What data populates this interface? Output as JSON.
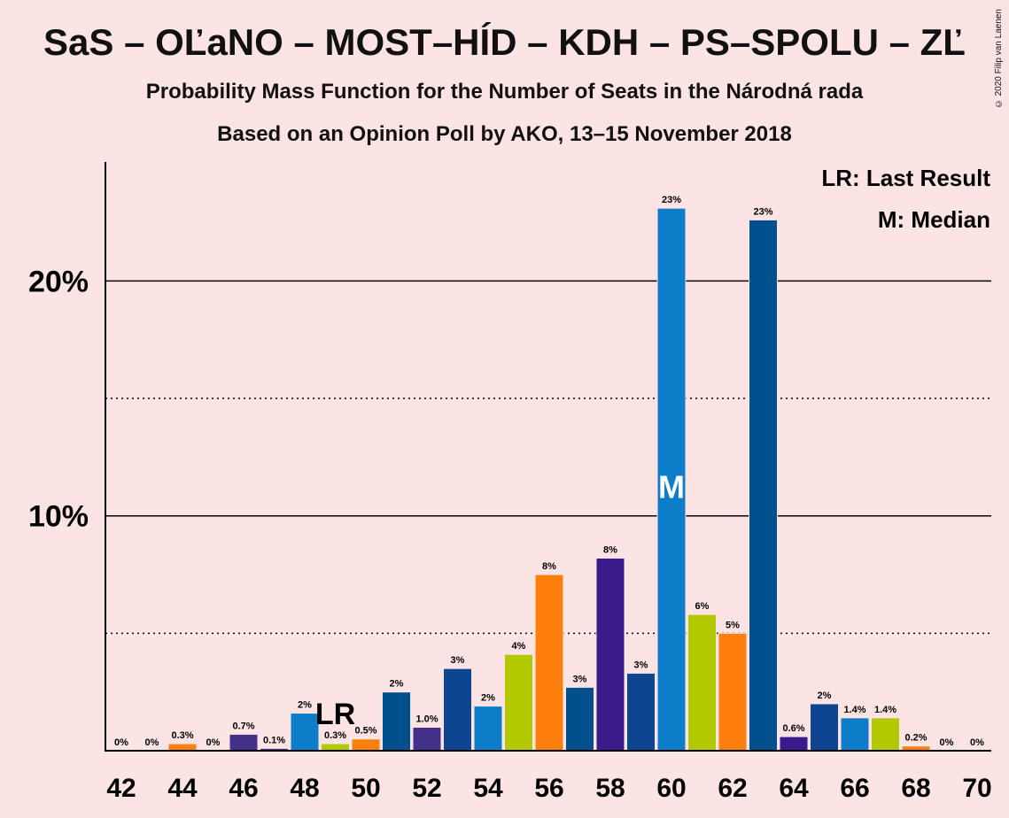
{
  "title": "SaS – OĽaNO – MOST–HÍD – KDH – PS–SPOLU – ZĽ",
  "subtitle": "Probability Mass Function for the Number of Seats in the Národná rada",
  "subtitle2": "Based on an Opinion Poll by AKO, 13–15 November 2018",
  "copyright": "© 2020 Filip van Laenen",
  "legend": {
    "lr": "LR: Last Result",
    "m": "M: Median"
  },
  "colors": {
    "background": "#fde4e4",
    "palette": [
      "#ff7f0e",
      "#423089",
      "#0e7dc9",
      "#b2c800",
      "#00508d",
      "#0e4590",
      "#3a1b8c"
    ]
  },
  "chart_data": {
    "type": "bar",
    "x": [
      42,
      43,
      44,
      45,
      46,
      47,
      48,
      49,
      50,
      51,
      52,
      53,
      54,
      55,
      56,
      57,
      58,
      59,
      60,
      61,
      62,
      63,
      64,
      65,
      66,
      67,
      68,
      69,
      70
    ],
    "values": [
      0,
      0,
      0.3,
      0,
      0.7,
      0.1,
      1.6,
      0.3,
      0.5,
      2.5,
      1.0,
      3.5,
      1.9,
      4.1,
      7.5,
      2.7,
      8.2,
      3.3,
      23.1,
      5.8,
      5.0,
      22.6,
      0.6,
      2.0,
      1.4,
      1.4,
      0.2,
      0,
      0
    ],
    "labels": [
      "0%",
      "0%",
      "0.3%",
      "0%",
      "0.7%",
      "0.1%",
      "2%",
      "0.3%",
      "0.5%",
      "2%",
      "1.0%",
      "3%",
      "2%",
      "4%",
      "8%",
      "3%",
      "8%",
      "3%",
      "23%",
      "6%",
      "5%",
      "23%",
      "0.6%",
      "2%",
      "1.4%",
      "1.4%",
      "0.2%",
      "0%",
      "0%"
    ],
    "color_index": [
      0,
      0,
      0,
      0,
      1,
      1,
      2,
      3,
      0,
      4,
      1,
      5,
      2,
      3,
      0,
      4,
      6,
      5,
      2,
      3,
      0,
      4,
      6,
      5,
      2,
      3,
      0,
      0,
      0
    ],
    "xticks": [
      "42",
      "44",
      "46",
      "48",
      "50",
      "52",
      "54",
      "56",
      "58",
      "60",
      "62",
      "64",
      "66",
      "68",
      "70"
    ],
    "yticks": [
      "10%",
      "20%"
    ],
    "ylim": [
      0,
      25
    ],
    "gridlines": {
      "solid": [
        10,
        20
      ],
      "dotted": [
        5,
        15
      ]
    },
    "last_result": {
      "seat": 49,
      "label": "LR"
    },
    "median": {
      "seat": 60,
      "label": "M"
    }
  }
}
